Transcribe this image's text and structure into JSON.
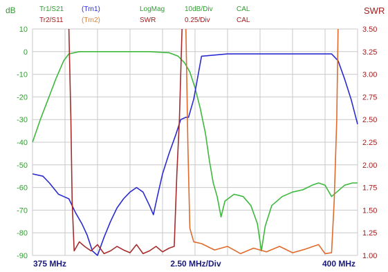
{
  "header": {
    "row1": [
      {
        "text": "dB",
        "color": "green"
      },
      {
        "text": "Tr1/S21",
        "color": "green"
      },
      {
        "text": "(Trn1)",
        "color": "blue"
      },
      {
        "text": "LogMag",
        "color": "green"
      },
      {
        "text": "10dB/Div",
        "color": "green"
      },
      {
        "text": "CAL",
        "color": "green"
      },
      {
        "text": "SWR",
        "color": "red"
      }
    ],
    "row2": [
      {
        "text": "Tr2/S11",
        "color": "red"
      },
      {
        "text": "(Trn2)",
        "color": "orange"
      },
      {
        "text": "SWR",
        "color": "red"
      },
      {
        "text": "0.25/Div",
        "color": "red"
      },
      {
        "text": "CAL",
        "color": "red"
      }
    ]
  },
  "colors": {
    "green": "#2e9e2e",
    "red": "#a31c1c",
    "blue": "#2a2ad0",
    "orange": "#d4803a",
    "grid": "#c8c8c8",
    "s21_trace": "#3cb83c",
    "s21_ref_trace": "#2a2ad0",
    "swr_trace": "#a52a2a",
    "swr_ref_trace": "#e06a2a"
  },
  "chart_data": {
    "type": "line",
    "x_labels": {
      "left": "375 MHz",
      "center": "2.50 MHz/Div",
      "right": "400 MHz"
    },
    "xlim": [
      375,
      400
    ],
    "y_left": {
      "label": "dB",
      "lim": [
        -90,
        10
      ],
      "ticks": [
        "10",
        "0",
        "-10",
        "-20",
        "-30",
        "-40",
        "-50",
        "-60",
        "-70",
        "-80",
        "-90"
      ]
    },
    "y_right": {
      "label": "SWR",
      "lim": [
        1.0,
        3.5
      ],
      "ticks": [
        "3.50",
        "3.25",
        "3.00",
        "2.75",
        "2.50",
        "2.25",
        "2.00",
        "1.75",
        "1.50",
        "1.25",
        "1.00"
      ]
    },
    "grid": true,
    "series": [
      {
        "name": "Tr1/S21",
        "axis": "left",
        "color": "#3cb83c",
        "x": [
          375,
          375.6,
          376.2,
          376.8,
          377.4,
          377.8,
          378.6,
          380,
          382,
          384,
          385.5,
          386.2,
          386.7,
          387.1,
          387.5,
          387.9,
          388.3,
          388.6,
          388.9,
          389.2,
          389.5,
          389.8,
          390.5,
          391.2,
          391.8,
          392.3,
          392.6,
          392.9,
          393.4,
          394.2,
          395,
          395.8,
          396.5,
          397,
          397.5,
          398,
          398.4,
          399,
          399.6,
          400
        ],
        "y": [
          -40,
          -30,
          -21,
          -12,
          -4,
          -1,
          0,
          0,
          0,
          0,
          -0.5,
          -2,
          -5,
          -9,
          -16,
          -25,
          -36,
          -48,
          -58,
          -64,
          -73,
          -66,
          -63,
          -64,
          -68,
          -76,
          -88,
          -77,
          -68,
          -64,
          -62,
          -61,
          -59,
          -58,
          -59,
          -64,
          -62,
          -59,
          -58,
          -58
        ]
      },
      {
        "name": "Trn1",
        "axis": "left",
        "color": "#2a2ad0",
        "x": [
          375,
          375.8,
          376.3,
          377,
          377.4,
          377.8,
          378.3,
          378.8,
          379.2,
          379.6,
          380,
          380.5,
          381,
          381.5,
          382,
          382.5,
          383,
          383.5,
          384,
          384.3,
          384.6,
          385,
          385.5,
          386,
          386.4,
          386.8,
          387,
          387.4,
          388,
          390,
          392,
          394,
          396,
          397.5,
          398,
          398.5,
          399,
          399.5,
          400
        ],
        "y": [
          -54,
          -55,
          -58,
          -63,
          -64,
          -65,
          -71,
          -76,
          -81,
          -88,
          -90,
          -82,
          -75,
          -69,
          -65,
          -62,
          -60,
          -62,
          -68,
          -72,
          -64,
          -54,
          -45,
          -37,
          -30,
          -29,
          -29,
          -21,
          -2,
          -1,
          -1,
          -1,
          -1,
          -1,
          -1,
          -4,
          -12,
          -21,
          -32
        ]
      },
      {
        "name": "Tr2/S11",
        "axis": "right",
        "color": "#a52a2a",
        "x": [
          377.8,
          377.95,
          378.05,
          378.2,
          378.6,
          379,
          379.5,
          380,
          380.5,
          381,
          381.5,
          382,
          382.5,
          383,
          383.5,
          384,
          384.5,
          385,
          385.5,
          385.9,
          386.1,
          386.3,
          386.4,
          386.5
        ],
        "y": [
          3.5,
          2.5,
          1.6,
          1.05,
          1.15,
          1.1,
          1.05,
          1.12,
          1.02,
          1.05,
          1.1,
          1.06,
          1.03,
          1.12,
          1.02,
          1.05,
          1.1,
          1.04,
          1.08,
          1.1,
          1.9,
          2.5,
          3.0,
          3.5
        ]
      },
      {
        "name": "Trn2",
        "axis": "right",
        "color": "#e06a2a",
        "x": [
          386.8,
          386.95,
          387.1,
          387.4,
          388,
          389,
          390,
          391,
          392,
          393,
          394,
          395,
          396,
          397,
          397.5,
          398,
          398.2,
          398.4,
          398.5
        ],
        "y": [
          3.5,
          2.2,
          1.3,
          1.15,
          1.13,
          1.06,
          1.1,
          1.02,
          1.08,
          1.04,
          1.1,
          1.03,
          1.07,
          1.12,
          1.02,
          1.03,
          1.6,
          2.5,
          3.5
        ]
      }
    ]
  }
}
